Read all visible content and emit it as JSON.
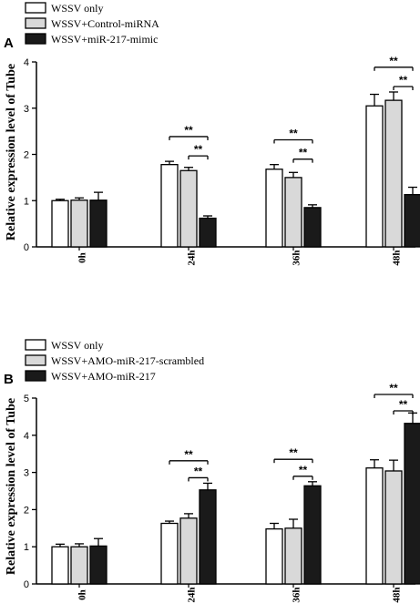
{
  "chart_data": [
    {
      "type": "bar",
      "panel_label": "A",
      "categories": [
        "0h",
        "24h",
        "36h",
        "48h"
      ],
      "ylabel": "Relative expression level of Tube",
      "ylim": [
        0,
        4
      ],
      "yticks": [
        "0",
        "1",
        "2",
        "3",
        "4"
      ],
      "grid": false,
      "legend_position": "top-left",
      "series": [
        {
          "name": "WSSV only",
          "color": "#ffffff",
          "values": [
            1.0,
            1.78,
            1.68,
            3.05
          ],
          "errors": [
            0.03,
            0.07,
            0.1,
            0.25
          ]
        },
        {
          "name": "WSSV+Control-miRNA",
          "color": "#d9d9d9",
          "values": [
            1.01,
            1.65,
            1.5,
            3.17
          ],
          "errors": [
            0.05,
            0.07,
            0.11,
            0.18
          ]
        },
        {
          "name": "WSSV+miR-217-mimic",
          "color": "#1a1a1a",
          "values": [
            1.01,
            0.62,
            0.85,
            1.13
          ],
          "errors": [
            0.17,
            0.05,
            0.06,
            0.16
          ]
        }
      ],
      "significance": [
        {
          "category": "24h",
          "from": 0,
          "to": 2,
          "label": "**"
        },
        {
          "category": "24h",
          "from": 1,
          "to": 2,
          "label": "**"
        },
        {
          "category": "36h",
          "from": 0,
          "to": 2,
          "label": "**"
        },
        {
          "category": "36h",
          "from": 1,
          "to": 2,
          "label": "**"
        },
        {
          "category": "48h",
          "from": 0,
          "to": 2,
          "label": "**"
        },
        {
          "category": "48h",
          "from": 1,
          "to": 2,
          "label": "**"
        }
      ]
    },
    {
      "type": "bar",
      "panel_label": "B",
      "categories": [
        "0h",
        "24h",
        "36h",
        "48h"
      ],
      "ylabel": "Relative expression level of Tube",
      "ylim": [
        0,
        5
      ],
      "yticks": [
        "0",
        "1",
        "2",
        "3",
        "4",
        "5"
      ],
      "grid": false,
      "legend_position": "top-left",
      "series": [
        {
          "name": "WSSV only",
          "color": "#ffffff",
          "values": [
            1.0,
            1.63,
            1.48,
            3.12
          ],
          "errors": [
            0.07,
            0.06,
            0.15,
            0.22
          ]
        },
        {
          "name": "WSSV+AMO-miR-217-scrambled",
          "color": "#d9d9d9",
          "values": [
            1.0,
            1.77,
            1.5,
            3.04
          ],
          "errors": [
            0.08,
            0.12,
            0.24,
            0.29
          ]
        },
        {
          "name": "WSSV+AMO-miR-217",
          "color": "#1a1a1a",
          "values": [
            1.02,
            2.53,
            2.64,
            4.32
          ],
          "errors": [
            0.2,
            0.18,
            0.11,
            0.28
          ]
        }
      ],
      "significance": [
        {
          "category": "24h",
          "from": 0,
          "to": 2,
          "label": "**"
        },
        {
          "category": "24h",
          "from": 1,
          "to": 2,
          "label": "**"
        },
        {
          "category": "36h",
          "from": 0,
          "to": 2,
          "label": "**"
        },
        {
          "category": "36h",
          "from": 1,
          "to": 2,
          "label": "**"
        },
        {
          "category": "48h",
          "from": 0,
          "to": 2,
          "label": "**"
        },
        {
          "category": "48h",
          "from": 1,
          "to": 2,
          "label": "**"
        }
      ]
    }
  ]
}
